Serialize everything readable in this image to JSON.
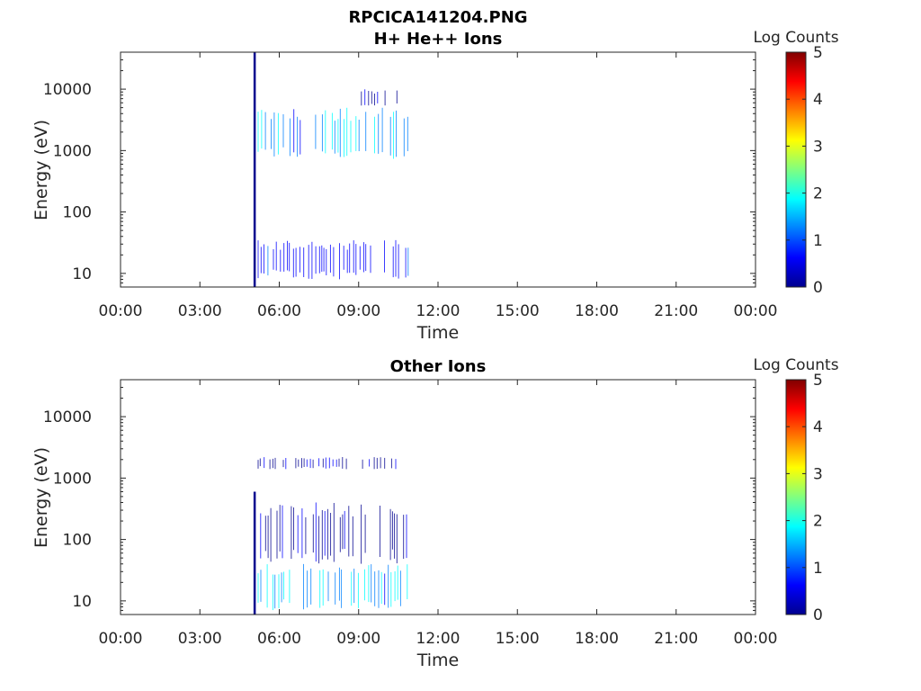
{
  "figure": {
    "title_line1": "RPCICA141204.PNG"
  },
  "colors": {
    "axis": "#262626",
    "spike": "#00008f",
    "colormap": [
      "#00008f",
      "#0000ff",
      "#0080ff",
      "#00ffff",
      "#80ff80",
      "#ffff00",
      "#ff8000",
      "#ff0000",
      "#800000"
    ]
  },
  "chart_data": [
    {
      "type": "heatmap",
      "title": "H+ He++ Ions",
      "xlabel": "Time",
      "ylabel": "Energy (eV)",
      "x_tick_labels": [
        "00:00",
        "03:00",
        "06:00",
        "09:00",
        "12:00",
        "15:00",
        "18:00",
        "21:00",
        "00:00"
      ],
      "x_range_hours": [
        0,
        24
      ],
      "y_scale": "log",
      "y_range": [
        6,
        40000
      ],
      "y_tick_values": [
        10,
        100,
        1000,
        10000
      ],
      "y_tick_labels": [
        "10",
        "100",
        "1000",
        "10000"
      ],
      "colorbar": {
        "label": "Log Counts",
        "range": [
          0,
          5
        ],
        "tick_labels": [
          "0",
          "1",
          "2",
          "3",
          "4",
          "5"
        ]
      },
      "spike": {
        "time_hours": 5.07,
        "energy_range": [
          6,
          40000
        ]
      },
      "bands": [
        {
          "t_range": [
            5.2,
            10.9
          ],
          "energy_range": [
            700,
            5000
          ],
          "level": 1.5
        },
        {
          "t_range": [
            5.2,
            10.9
          ],
          "energy_range": [
            8,
            35
          ],
          "level": 0.8
        },
        {
          "t_range": [
            9.0,
            10.6
          ],
          "energy_range": [
            5000,
            10000
          ],
          "level": 0.3
        }
      ]
    },
    {
      "type": "heatmap",
      "title": "Other Ions",
      "xlabel": "Time",
      "ylabel": "Energy (eV)",
      "x_tick_labels": [
        "00:00",
        "03:00",
        "06:00",
        "09:00",
        "12:00",
        "15:00",
        "18:00",
        "21:00",
        "00:00"
      ],
      "x_range_hours": [
        0,
        24
      ],
      "y_scale": "log",
      "y_range": [
        6,
        40000
      ],
      "y_tick_values": [
        10,
        100,
        1000,
        10000
      ],
      "y_tick_labels": [
        "10",
        "100",
        "1000",
        "10000"
      ],
      "colorbar": {
        "label": "Log Counts",
        "range": [
          0,
          5
        ],
        "tick_labels": [
          "0",
          "1",
          "2",
          "3",
          "4",
          "5"
        ]
      },
      "spike": {
        "time_hours": 5.07,
        "energy_range": [
          6,
          600
        ]
      },
      "bands": [
        {
          "t_range": [
            5.2,
            10.9
          ],
          "energy_range": [
            7,
            40
          ],
          "level": 1.6
        },
        {
          "t_range": [
            5.2,
            10.9
          ],
          "energy_range": [
            40,
            400
          ],
          "level": 0.3
        },
        {
          "t_range": [
            5.2,
            10.5
          ],
          "energy_range": [
            1400,
            2200
          ],
          "level": 0.3
        }
      ]
    }
  ]
}
